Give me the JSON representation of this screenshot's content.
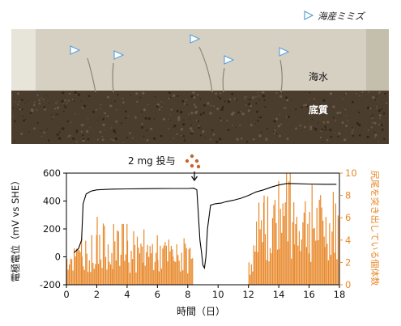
{
  "photo": {
    "legend_label": "海産ミミズ",
    "water_label": "海水",
    "sediment_label": "底質",
    "colors": {
      "tank_bg": "#d8d2c4",
      "sediment": "#4a3b2c",
      "marker": "#5aa0d8"
    }
  },
  "annotation": {
    "dose_label": "2 mg 投与",
    "arrow_symbol": "↓"
  },
  "chart_data": {
    "type": "line+bar",
    "xlabel": "時間（日）",
    "ylabel_left": "電極電位（mV vs SHE）",
    "ylabel_right": "尻尾を突き出している個体数",
    "xlim": [
      0,
      18
    ],
    "ylim_left": [
      -200,
      600
    ],
    "ylim_right": [
      0,
      10
    ],
    "x_ticks": [
      "0",
      "2",
      "4",
      "6",
      "8",
      "10",
      "12",
      "14",
      "16",
      "18"
    ],
    "y_ticks_left": [
      "-200",
      "0",
      "200",
      "400",
      "600"
    ],
    "y_ticks_right": [
      "0",
      "2",
      "4",
      "6",
      "8",
      "10"
    ],
    "colors": {
      "line": "#000000",
      "bars": "#e8892b",
      "right_axis": "#e8892b"
    },
    "potential_line": [
      [
        0.5,
        30
      ],
      [
        0.8,
        60
      ],
      [
        1.0,
        120
      ],
      [
        1.1,
        380
      ],
      [
        1.3,
        450
      ],
      [
        1.6,
        470
      ],
      [
        2.0,
        480
      ],
      [
        3.0,
        485
      ],
      [
        4.0,
        487
      ],
      [
        5.0,
        488
      ],
      [
        6.0,
        489
      ],
      [
        7.0,
        490
      ],
      [
        8.0,
        490
      ],
      [
        8.4,
        492
      ],
      [
        8.6,
        480
      ],
      [
        8.7,
        300
      ],
      [
        8.8,
        120
      ],
      [
        8.9,
        40
      ],
      [
        9.0,
        -60
      ],
      [
        9.1,
        -80
      ],
      [
        9.2,
        0
      ],
      [
        9.3,
        200
      ],
      [
        9.5,
        370
      ],
      [
        9.8,
        380
      ],
      [
        10.2,
        385
      ],
      [
        10.5,
        395
      ],
      [
        11.0,
        405
      ],
      [
        11.5,
        420
      ],
      [
        12.0,
        440
      ],
      [
        12.5,
        465
      ],
      [
        13.0,
        480
      ],
      [
        13.5,
        500
      ],
      [
        14.0,
        515
      ],
      [
        14.5,
        525
      ],
      [
        15.0,
        525
      ],
      [
        16.0,
        522
      ],
      [
        17.0,
        520
      ],
      [
        17.8,
        520
      ]
    ],
    "bar_segments": [
      {
        "start": 0.0,
        "end": 1.0,
        "count": 2.6
      },
      {
        "start": 1.0,
        "end": 2.0,
        "count": 3.2
      },
      {
        "start": 2.0,
        "end": 3.0,
        "count": 3.8
      },
      {
        "start": 3.0,
        "end": 4.0,
        "count": 3.4
      },
      {
        "start": 4.0,
        "end": 5.0,
        "count": 3.0
      },
      {
        "start": 5.0,
        "end": 6.0,
        "count": 3.1
      },
      {
        "start": 6.0,
        "end": 7.0,
        "count": 2.9
      },
      {
        "start": 7.0,
        "end": 8.3,
        "count": 2.6
      },
      {
        "start": 12.0,
        "end": 12.5,
        "count": 2.2
      },
      {
        "start": 12.5,
        "end": 13.0,
        "count": 4.6
      },
      {
        "start": 13.0,
        "end": 14.0,
        "count": 5.8
      },
      {
        "start": 14.0,
        "end": 15.0,
        "count": 6.4
      },
      {
        "start": 15.0,
        "end": 16.0,
        "count": 6.0
      },
      {
        "start": 16.0,
        "end": 17.0,
        "count": 5.6
      },
      {
        "start": 17.0,
        "end": 18.0,
        "count": 5.2
      }
    ]
  }
}
